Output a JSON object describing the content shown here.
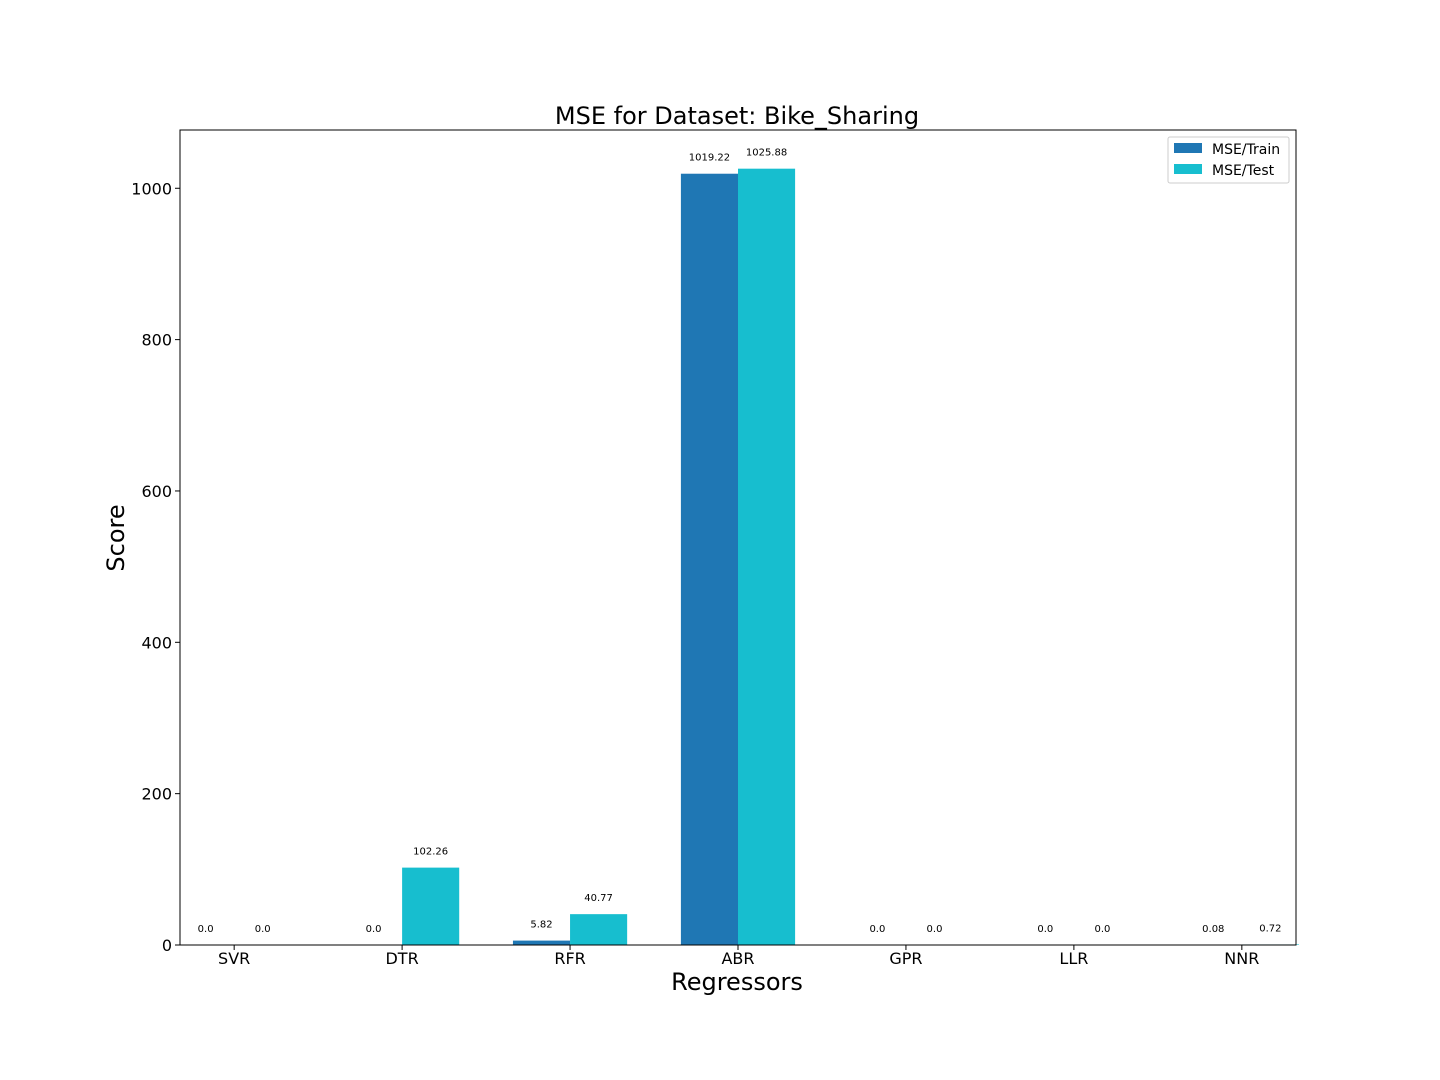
{
  "chart_data": {
    "type": "bar",
    "title": "MSE for Dataset: Bike_Sharing",
    "xlabel": "Regressors",
    "ylabel": "Score",
    "categories": [
      "SVR",
      "DTR",
      "RFR",
      "ABR",
      "GPR",
      "LLR",
      "NNR"
    ],
    "series": [
      {
        "name": "MSE/Train",
        "color": "#1f77b4",
        "values": [
          0.0,
          0.0,
          5.82,
          1019.22,
          0.0,
          0.0,
          0.08
        ],
        "labels": [
          "0.0",
          "0.0",
          "5.82",
          "1019.22",
          "0.0",
          "0.0",
          "0.08"
        ]
      },
      {
        "name": "MSE/Test",
        "color": "#17becf",
        "values": [
          0.0,
          102.26,
          40.77,
          1025.88,
          0.0,
          0.0,
          0.72
        ],
        "labels": [
          "0.0",
          "102.26",
          "40.77",
          "1025.88",
          "0.0",
          "0.0",
          "0.72"
        ]
      }
    ],
    "ylim": [
      0,
      1077
    ],
    "yticks": [
      0,
      200,
      400,
      600,
      800,
      1000
    ],
    "ytick_labels": [
      "0",
      "200",
      "400",
      "600",
      "800",
      "1000"
    ],
    "grid": false,
    "legend_position": "top-right"
  }
}
